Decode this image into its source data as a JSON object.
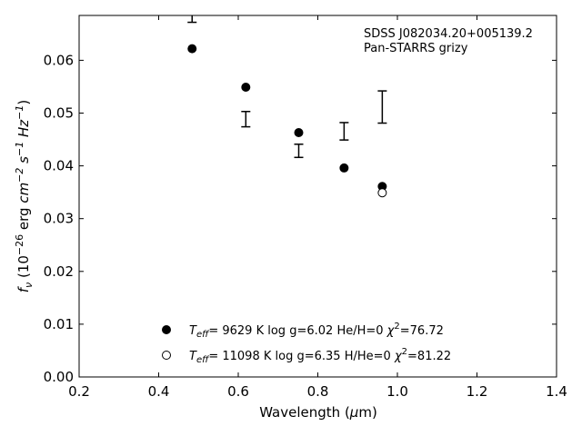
{
  "chart_data": {
    "type": "scatter",
    "title": "",
    "xlabel": "Wavelength (μm)",
    "ylabel": "f_ν (10^-26 erg cm^-2 s^-1 Hz^-1)",
    "xlim": [
      0.2,
      1.4
    ],
    "ylim": [
      0.0,
      0.0685
    ],
    "xticks": [
      "0.2",
      "0.4",
      "0.6",
      "0.8",
      "1.0",
      "1.2",
      "1.4"
    ],
    "yticks": [
      "0.00",
      "0.01",
      "0.02",
      "0.03",
      "0.04",
      "0.05",
      "0.06"
    ],
    "annotation": [
      "SDSS J082034.20+005139.2",
      "Pan-STARRS grizy"
    ],
    "observed": {
      "x": [
        0.484,
        0.619,
        0.752,
        0.866,
        0.962
      ],
      "y_low": [
        0.0672,
        0.0474,
        0.0416,
        0.0449,
        0.0481
      ],
      "y_high": [
        0.069,
        0.0503,
        0.0441,
        0.0482,
        0.0542
      ]
    },
    "series": [
      {
        "name": "T_eff= 9629 K log g=6.02 He/H=0 χ²=76.72",
        "marker": "filled-circle",
        "legend": {
          "teff": "9629",
          "logg": "6.02",
          "comp": "He/H=0",
          "chi2": "76.72"
        },
        "x": [
          0.484,
          0.619,
          0.752,
          0.866,
          0.962
        ],
        "y": [
          0.0622,
          0.0549,
          0.0463,
          0.0396,
          0.0361
        ]
      },
      {
        "name": "T_eff= 11098 K log g=6.35 H/He=0 χ²=81.22",
        "marker": "open-circle",
        "legend": {
          "teff": "11098",
          "logg": "6.35",
          "comp": "H/He=0",
          "chi2": "81.22"
        },
        "x": [
          0.962
        ],
        "y": [
          0.0349
        ]
      }
    ],
    "grid": false,
    "legend_position": "lower-center"
  }
}
